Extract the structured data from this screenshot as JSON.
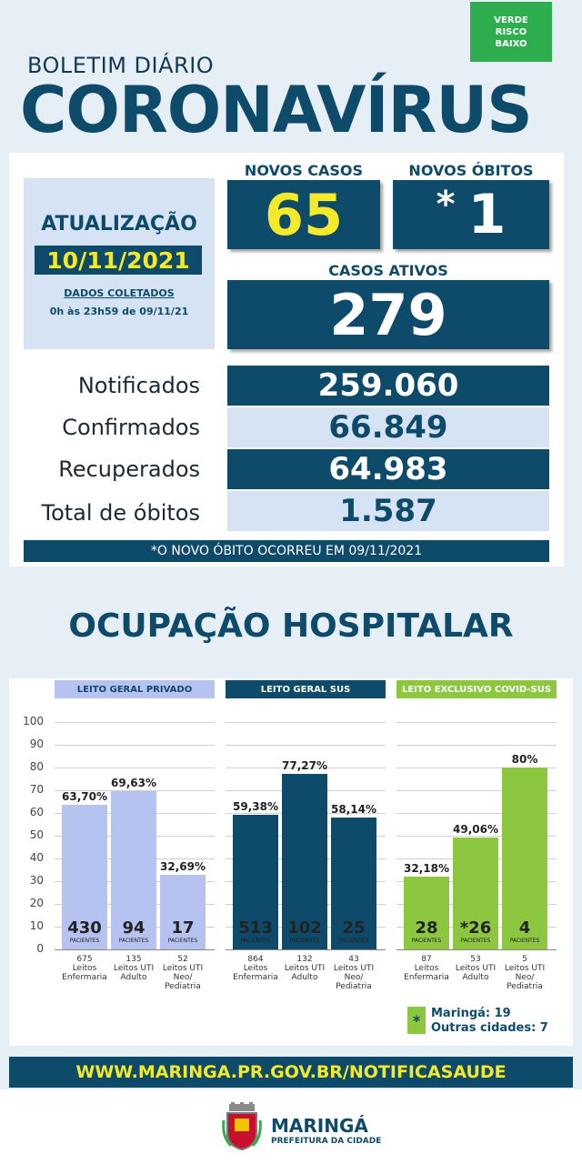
{
  "risk": {
    "line1": "VERDE",
    "line2": "RISCO",
    "line3": "BAIXO",
    "color": "#2fae4f"
  },
  "header": {
    "subtitle": "BOLETIM DIÁRIO",
    "title": "CORONAVÍRUS"
  },
  "update": {
    "label": "ATUALIZAÇÃO",
    "date": "10/11/2021",
    "note1": "DADOS COLETADOS",
    "note2": "0h às 23h59 de 09/11/21"
  },
  "kpis": {
    "new_cases_label": "NOVOS CASOS",
    "new_cases": "65",
    "new_deaths_label": "NOVOS ÓBITOS",
    "new_deaths_mark": "*",
    "new_deaths": "1",
    "active_label": "CASOS ATIVOS",
    "active": "279"
  },
  "stats": [
    {
      "label": "Notificados",
      "value": "259.060"
    },
    {
      "label": "Confirmados",
      "value": "66.849"
    },
    {
      "label": "Recuperados",
      "value": "64.983"
    },
    {
      "label": "Total de óbitos",
      "value": "1.587"
    }
  ],
  "footnote": "*O NOVO ÓBITO OCORREU EM 09/11/2021",
  "hospital": {
    "title": "OCUPAÇÃO HOSPITALAR"
  },
  "chart_data": {
    "type": "bar",
    "ylim": [
      0,
      100
    ],
    "yticks": [
      "100",
      "90",
      "80",
      "70",
      "60",
      "50",
      "40",
      "30",
      "20",
      "10",
      "0"
    ],
    "groups": [
      {
        "name": "LEITO GERAL PRIVADO",
        "color": "#b6c3f0",
        "bars": [
          {
            "pct": 63.7,
            "pct_label": "63,70%",
            "patients": "430",
            "beds": "675",
            "type": "Leitos Enfermaria"
          },
          {
            "pct": 69.63,
            "pct_label": "69,63%",
            "patients": "94",
            "beds": "135",
            "type": "Leitos UTI Adulto"
          },
          {
            "pct": 32.69,
            "pct_label": "32,69%",
            "patients": "17",
            "beds": "52",
            "type": "Leitos UTI Neo/ Pediatria"
          }
        ]
      },
      {
        "name": "LEITO GERAL SUS",
        "color": "#0e4a6a",
        "bars": [
          {
            "pct": 59.38,
            "pct_label": "59,38%",
            "patients": "513",
            "beds": "864",
            "type": "Leitos Enfermaria"
          },
          {
            "pct": 77.27,
            "pct_label": "77,27%",
            "patients": "102",
            "beds": "132",
            "type": "Leitos UTI Adulto"
          },
          {
            "pct": 58.14,
            "pct_label": "58,14%",
            "patients": "25",
            "beds": "43",
            "type": "Leitos UTI Neo/ Pediatria"
          }
        ]
      },
      {
        "name": "LEITO EXCLUSIVO COVID-SUS",
        "color": "#8dc63f",
        "bars": [
          {
            "pct": 32.18,
            "pct_label": "32,18%",
            "patients": "28",
            "beds": "87",
            "type": "Leitos Enfermaria"
          },
          {
            "pct": 49.06,
            "pct_label": "49,06%",
            "patients": "*26",
            "beds": "53",
            "type": "Leitos UTI Adulto"
          },
          {
            "pct": 80,
            "pct_label": "80%",
            "patients": "4",
            "beds": "5",
            "type": "Leitos UTI Neo/ Pediatria"
          }
        ]
      }
    ],
    "patients_label": "PACIENTES"
  },
  "legend": {
    "mark": "*",
    "line1": "Maringá: 19",
    "line2": "Outras cidades: 7"
  },
  "url": "WWW.MARINGA.PR.GOV.BR/NOTIFICASAUDE",
  "footer": {
    "city": "MARINGÁ",
    "sub": "PREFEITURA DA CIDADE"
  }
}
